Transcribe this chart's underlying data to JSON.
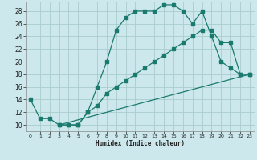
{
  "xlabel": "Humidex (Indice chaleur)",
  "bg_color": "#cce8ec",
  "grid_color": "#aacccc",
  "line_color": "#1a7a6e",
  "xlim": [
    -0.5,
    23.5
  ],
  "ylim": [
    9,
    29.5
  ],
  "xticks": [
    0,
    1,
    2,
    3,
    4,
    5,
    6,
    7,
    8,
    9,
    10,
    11,
    12,
    13,
    14,
    15,
    16,
    17,
    18,
    19,
    20,
    21,
    22,
    23
  ],
  "yticks": [
    10,
    12,
    14,
    16,
    18,
    20,
    22,
    24,
    26,
    28
  ],
  "line1_x": [
    0,
    1,
    2,
    3,
    4,
    5,
    6,
    7,
    8,
    9,
    10,
    11,
    12,
    13,
    14,
    15,
    16,
    17,
    18,
    19,
    20,
    21,
    22,
    23
  ],
  "line1_y": [
    14,
    11,
    11,
    10,
    10,
    10,
    12,
    16,
    20,
    25,
    27,
    28,
    28,
    28,
    29,
    29,
    28,
    26,
    28,
    24,
    20,
    19,
    18,
    18
  ],
  "line2_x": [
    3,
    4,
    5,
    6,
    7,
    8,
    9,
    10,
    11,
    12,
    13,
    14,
    15,
    16,
    17,
    18,
    19,
    20,
    21,
    22,
    23
  ],
  "line2_y": [
    10,
    10,
    10,
    12,
    13,
    15,
    16,
    17,
    18,
    19,
    20,
    21,
    22,
    23,
    24,
    25,
    25,
    23,
    23,
    18,
    18
  ],
  "line3_x": [
    3,
    23
  ],
  "line3_y": [
    10,
    18
  ]
}
